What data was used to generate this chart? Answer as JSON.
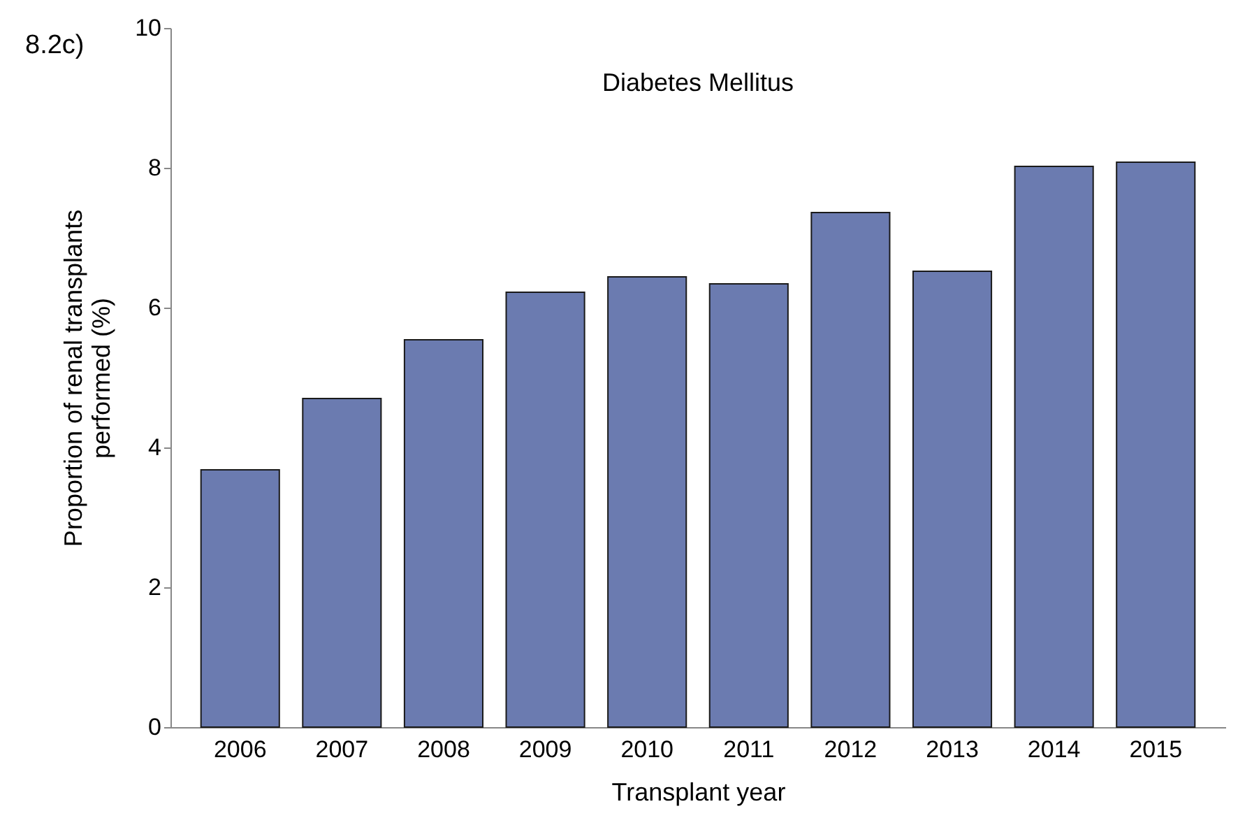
{
  "chart_data": {
    "type": "bar",
    "title": "Diabetes Mellitus",
    "xlabel": "Transplant year",
    "ylabel": "Proportion of renal transplants performed (%)",
    "annotations": [
      "8.2c)"
    ],
    "categories": [
      "2006",
      "2007",
      "2008",
      "2009",
      "2010",
      "2011",
      "2012",
      "2013",
      "2014",
      "2015"
    ],
    "values": [
      3.68,
      4.7,
      5.54,
      6.22,
      6.44,
      6.34,
      7.36,
      6.52,
      8.02,
      8.08
    ],
    "color": "#6b7bb0",
    "ylim": [
      0,
      10
    ],
    "yticks": [
      0,
      2,
      4,
      6,
      8,
      10
    ],
    "grid": false
  }
}
